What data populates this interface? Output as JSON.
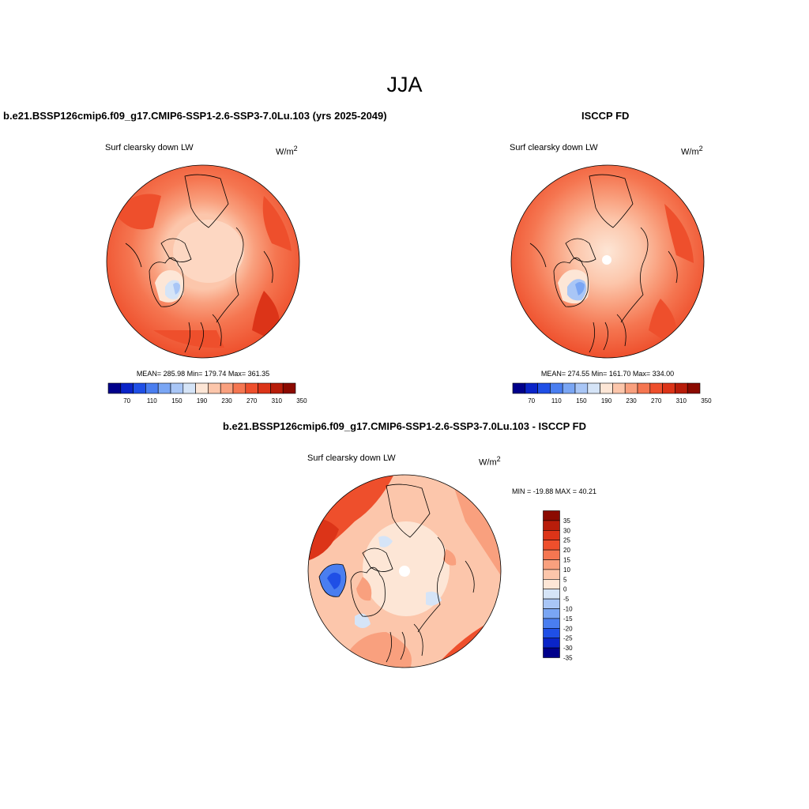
{
  "title": "JJA",
  "panels": [
    {
      "title": "b.e21.BSSP126cmip6.f09_g17.CMIP6-SSP1-2.6-SSP3-7.0Lu.103 (yrs 2025-2049)",
      "variable": "Surf clearsky down LW",
      "units": "W/m",
      "units_sup": "2",
      "stats": "MEAN= 285.98  Min= 179.74  Max= 361.35",
      "colorbar_labels": [
        "70",
        "110",
        "150",
        "190",
        "230",
        "270",
        "310",
        "350"
      ]
    },
    {
      "title": "ISCCP FD",
      "variable": "Surf clearsky down LW",
      "units": "W/m",
      "units_sup": "2",
      "stats": "MEAN= 274.55  Min= 161.70  Max= 334.00",
      "colorbar_labels": [
        "70",
        "110",
        "150",
        "190",
        "230",
        "270",
        "310",
        "350"
      ]
    },
    {
      "title": "b.e21.BSSP126cmip6.f09_g17.CMIP6-SSP1-2.6-SSP3-7.0Lu.103 - ISCCP FD",
      "variable": "Surf clearsky down LW",
      "units": "W/m",
      "units_sup": "2",
      "stats": "MIN = -19.88 MAX =  40.21",
      "colorbar_labels": [
        "35",
        "30",
        "25",
        "20",
        "15",
        "10",
        "5",
        "0",
        "-5",
        "-10",
        "-15",
        "-20",
        "-25",
        "-30",
        "-35"
      ]
    }
  ],
  "colors": {
    "abs_scale": [
      "#00008b",
      "#0a24c8",
      "#1f4fe6",
      "#4a7ef0",
      "#7aa6f4",
      "#a9c6f6",
      "#d5e4f7",
      "#fde6d6",
      "#fcc6ab",
      "#f9a07e",
      "#f57651",
      "#ee4f2c",
      "#dc3418",
      "#b81d0a",
      "#8b0a00"
    ],
    "diff_scale": [
      "#8b0a00",
      "#b81d0a",
      "#dc3418",
      "#ee4f2c",
      "#f57651",
      "#f9a07e",
      "#fcc6ab",
      "#fde6d6",
      "#d5e4f7",
      "#a9c6f6",
      "#7aa6f4",
      "#4a7ef0",
      "#1f4fe6",
      "#0a24c8",
      "#00008b"
    ]
  }
}
